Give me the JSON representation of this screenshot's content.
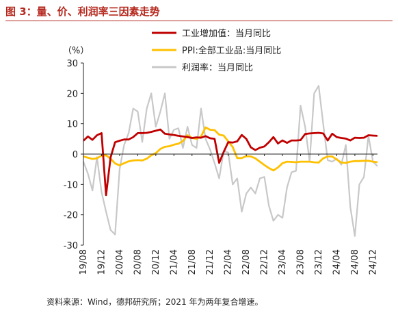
{
  "figure": {
    "title": "图 3：量、价、利润率三因素走势",
    "unit": "（%）",
    "source": "资料来源：Wind，德邦研究所；2021 年为两年复合增速。"
  },
  "chart_data": {
    "type": "line",
    "ylim": [
      -30,
      30
    ],
    "yticks": [
      -30,
      -20,
      -10,
      0,
      10,
      20,
      30
    ],
    "x_start": "2019-08",
    "x_end": "2025-04",
    "xtick_labels": [
      "19/08",
      "19/12",
      "20/04",
      "20/08",
      "20/12",
      "21/04",
      "21/08",
      "21/12",
      "22/04",
      "22/08",
      "22/12",
      "23/04",
      "23/08",
      "23/12",
      "24/04",
      "24/08",
      "24/12"
    ],
    "legend_position": "top-center",
    "grid": false,
    "series": [
      {
        "name": "工业增加值：当月同比",
        "color": "#c00000",
        "values": [
          4.4,
          5.8,
          4.7,
          6.2,
          6.9,
          -13.5,
          -1.1,
          3.9,
          4.4,
          4.8,
          4.8,
          5.6,
          6.9,
          6.9,
          7.0,
          7.3,
          7.7,
          8.1,
          6.7,
          6.5,
          6.3,
          6.0,
          5.8,
          5.6,
          5.3,
          5.5,
          5.4,
          5.9,
          5.2,
          5.0,
          -2.9,
          0.7,
          3.9,
          3.8,
          4.2,
          6.3,
          5.0,
          2.2,
          1.3,
          2.1,
          2.5,
          3.9,
          5.6,
          3.5,
          4.5,
          3.7,
          4.5,
          4.5,
          4.6,
          6.6,
          6.8,
          6.9,
          7.0,
          6.8,
          4.5,
          6.7,
          5.6,
          5.3,
          5.1,
          4.5,
          5.4,
          5.3,
          5.4,
          6.2,
          6.1,
          6.0
        ]
      },
      {
        "name": "PPI:全部工业品:当月同比",
        "color": "#ffc000",
        "values": [
          -0.8,
          -1.2,
          -1.6,
          -1.4,
          -0.5,
          -0.4,
          -1.5,
          -3.1,
          -3.7,
          -3.0,
          -2.4,
          -2.1,
          -2.0,
          -2.1,
          -1.5,
          -0.4,
          0.3,
          1.7,
          2.4,
          2.6,
          3.1,
          3.4,
          4.3,
          6.2,
          5.3,
          5.0,
          5.8,
          8.8,
          8.0,
          7.9,
          6.4,
          6.1,
          4.2,
          2.3,
          -1.3,
          -1.3,
          -0.7,
          -0.8,
          -1.4,
          -2.5,
          -3.6,
          -4.6,
          -5.4,
          -4.4,
          -3.0,
          -2.5,
          -2.6,
          -2.7,
          -2.5,
          -2.5,
          -2.5,
          -2.7,
          -2.8,
          -1.4,
          -0.8,
          -0.8,
          -1.8,
          -2.8,
          -2.9,
          -2.5,
          -2.3,
          -2.3,
          -2.2,
          -2.2,
          -2.5,
          -2.7
        ]
      },
      {
        "name": "利润率：当月同比",
        "color": "#c8c8c8",
        "values": [
          -2.5,
          -6.5,
          -12.0,
          -1.0,
          -12.5,
          -19.0,
          -25.0,
          -26.5,
          -5.0,
          3.0,
          7.0,
          15.0,
          14.0,
          4.0,
          15.0,
          20.0,
          9.0,
          14.0,
          20.0,
          5.0,
          8.0,
          8.5,
          2.0,
          9.0,
          3.0,
          2.0,
          15.0,
          5.0,
          1.5,
          -3.0,
          -8.0,
          1.0,
          0.5,
          -10.0,
          -8.0,
          -19.0,
          -13.0,
          -11.0,
          -13.0,
          -8.0,
          -7.5,
          -17.0,
          -22.0,
          -20.0,
          -21.0,
          -11.0,
          -6.0,
          -5.5,
          16.0,
          9.0,
          -2.5,
          20.0,
          22.5,
          10.0,
          -2.0,
          -2.5,
          -1.5,
          -3.5,
          3.0,
          -17.5,
          -27.0,
          -10.0,
          -7.5,
          6.0,
          -2.5,
          -4.0
        ]
      }
    ]
  }
}
